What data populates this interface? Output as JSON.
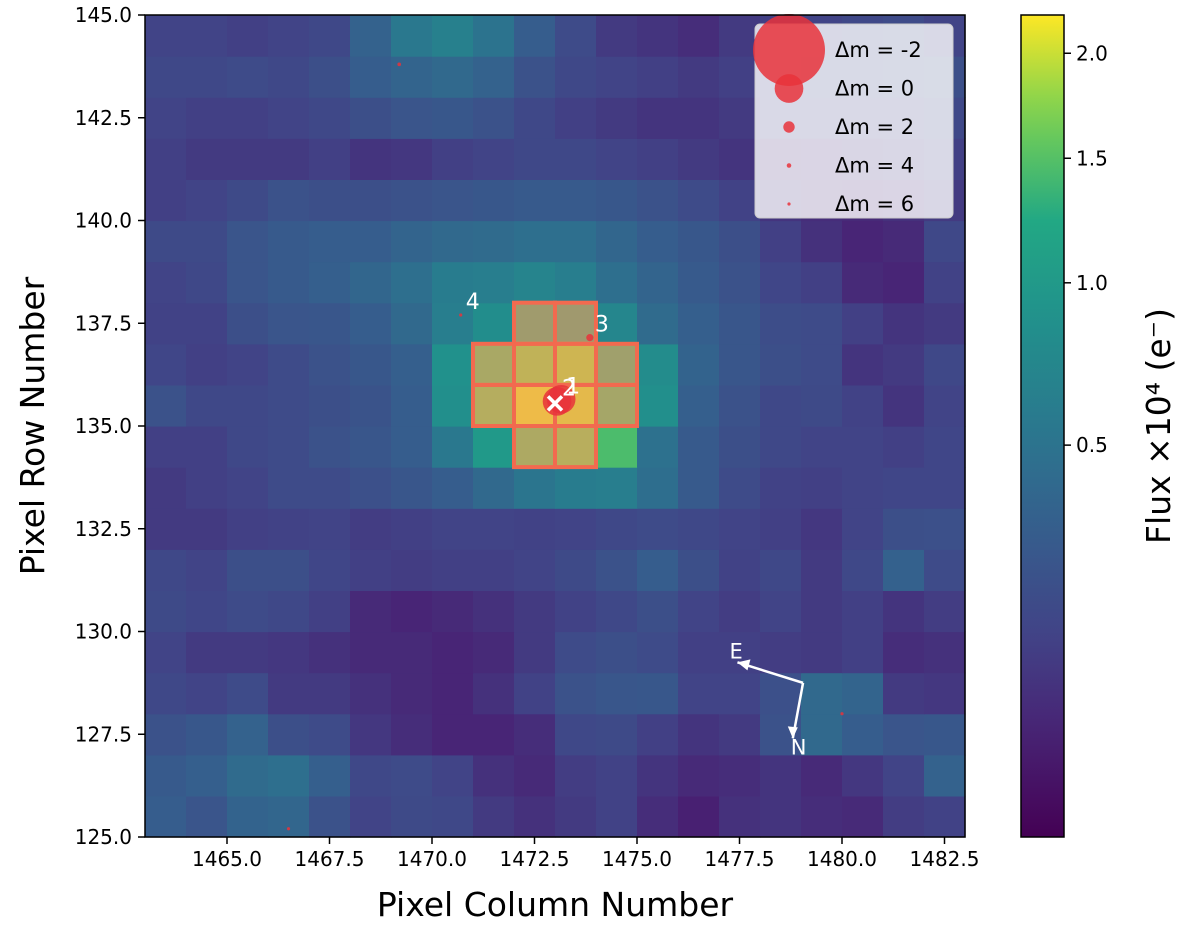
{
  "chart_data": {
    "type": "heatmap",
    "xlabel": "Pixel Column Number",
    "ylabel": "Pixel Row Number",
    "xlim": [
      1463,
      1483
    ],
    "ylim": [
      125,
      145
    ],
    "x_ticks": [
      1465.0,
      1467.5,
      1470.0,
      1472.5,
      1475.0,
      1477.5,
      1480.0,
      1482.5
    ],
    "x_tick_labels": [
      "1465.0",
      "1467.5",
      "1470.0",
      "1472.5",
      "1475.0",
      "1477.5",
      "1480.0",
      "1482.5"
    ],
    "y_ticks": [
      125.0,
      127.5,
      130.0,
      132.5,
      135.0,
      137.5,
      140.0,
      142.5,
      145.0
    ],
    "y_tick_labels": [
      "125.0",
      "127.5",
      "130.0",
      "132.5",
      "135.0",
      "137.5",
      "140.0",
      "142.5",
      "145.0"
    ],
    "grid_cols": 20,
    "grid_rows": 20,
    "grid_origin": [
      1463,
      125
    ],
    "pixel_flux": [
      [
        0.3,
        0.24,
        0.35,
        0.38,
        0.22,
        0.14,
        0.17,
        0.16,
        0.1,
        0.07,
        0.1,
        0.13,
        0.06,
        0.03,
        0.07,
        0.08,
        0.06,
        0.05,
        0.11,
        0.13
      ],
      [
        0.28,
        0.32,
        0.42,
        0.46,
        0.32,
        0.16,
        0.18,
        0.14,
        0.07,
        0.05,
        0.11,
        0.13,
        0.08,
        0.05,
        0.06,
        0.08,
        0.05,
        0.09,
        0.14,
        0.34
      ],
      [
        0.22,
        0.26,
        0.34,
        0.2,
        0.18,
        0.09,
        0.06,
        0.04,
        0.04,
        0.06,
        0.16,
        0.17,
        0.12,
        0.08,
        0.1,
        0.22,
        0.4,
        0.3,
        0.24,
        0.26
      ],
      [
        0.16,
        0.14,
        0.18,
        0.1,
        0.1,
        0.07,
        0.05,
        0.04,
        0.07,
        0.13,
        0.22,
        0.25,
        0.26,
        0.14,
        0.14,
        0.21,
        0.4,
        0.36,
        0.1,
        0.09
      ],
      [
        0.14,
        0.1,
        0.1,
        0.09,
        0.07,
        0.05,
        0.05,
        0.04,
        0.05,
        0.1,
        0.18,
        0.2,
        0.18,
        0.12,
        0.12,
        0.11,
        0.1,
        0.12,
        0.06,
        0.07
      ],
      [
        0.17,
        0.15,
        0.18,
        0.16,
        0.12,
        0.05,
        0.04,
        0.05,
        0.07,
        0.1,
        0.13,
        0.16,
        0.2,
        0.14,
        0.11,
        0.14,
        0.1,
        0.12,
        0.08,
        0.11
      ],
      [
        0.16,
        0.14,
        0.2,
        0.2,
        0.15,
        0.12,
        0.11,
        0.12,
        0.12,
        0.14,
        0.17,
        0.22,
        0.3,
        0.2,
        0.13,
        0.16,
        0.1,
        0.16,
        0.33,
        0.18
      ],
      [
        0.1,
        0.1,
        0.12,
        0.13,
        0.14,
        0.11,
        0.12,
        0.14,
        0.14,
        0.13,
        0.14,
        0.16,
        0.18,
        0.16,
        0.14,
        0.12,
        0.09,
        0.14,
        0.2,
        0.21
      ],
      [
        0.1,
        0.12,
        0.14,
        0.18,
        0.18,
        0.21,
        0.25,
        0.3,
        0.4,
        0.52,
        0.6,
        0.62,
        0.45,
        0.28,
        0.18,
        0.13,
        0.12,
        0.14,
        0.15,
        0.15
      ],
      [
        0.12,
        0.12,
        0.16,
        0.18,
        0.22,
        0.25,
        0.3,
        0.55,
        1.0,
        1.4,
        1.55,
        1.45,
        0.48,
        0.28,
        0.2,
        0.16,
        0.14,
        0.14,
        0.12,
        0.15
      ],
      [
        0.22,
        0.16,
        0.16,
        0.18,
        0.2,
        0.23,
        0.3,
        0.85,
        1.5,
        2.1,
        2.0,
        1.3,
        0.85,
        0.32,
        0.22,
        0.16,
        0.17,
        0.13,
        0.08,
        0.14
      ],
      [
        0.15,
        0.12,
        0.14,
        0.18,
        0.22,
        0.26,
        0.32,
        0.88,
        1.35,
        1.65,
        1.8,
        1.1,
        0.8,
        0.35,
        0.25,
        0.2,
        0.18,
        0.08,
        0.1,
        0.16
      ],
      [
        0.13,
        0.13,
        0.2,
        0.24,
        0.25,
        0.3,
        0.4,
        0.62,
        0.82,
        0.9,
        0.85,
        0.72,
        0.42,
        0.32,
        0.25,
        0.19,
        0.18,
        0.12,
        0.08,
        0.1
      ],
      [
        0.14,
        0.16,
        0.24,
        0.28,
        0.32,
        0.38,
        0.46,
        0.6,
        0.62,
        0.7,
        0.62,
        0.46,
        0.36,
        0.28,
        0.22,
        0.15,
        0.12,
        0.05,
        0.04,
        0.13
      ],
      [
        0.17,
        0.17,
        0.24,
        0.28,
        0.3,
        0.3,
        0.36,
        0.4,
        0.42,
        0.46,
        0.46,
        0.38,
        0.3,
        0.26,
        0.2,
        0.12,
        0.07,
        0.04,
        0.05,
        0.16
      ],
      [
        0.12,
        0.14,
        0.17,
        0.22,
        0.2,
        0.2,
        0.22,
        0.24,
        0.26,
        0.28,
        0.28,
        0.26,
        0.22,
        0.18,
        0.13,
        0.08,
        0.06,
        0.05,
        0.07,
        0.1
      ],
      [
        0.12,
        0.1,
        0.1,
        0.1,
        0.12,
        0.08,
        0.09,
        0.12,
        0.14,
        0.16,
        0.16,
        0.14,
        0.12,
        0.1,
        0.08,
        0.06,
        0.07,
        0.08,
        0.1,
        0.12
      ],
      [
        0.14,
        0.12,
        0.12,
        0.14,
        0.16,
        0.2,
        0.24,
        0.26,
        0.22,
        0.16,
        0.12,
        0.1,
        0.08,
        0.08,
        0.1,
        0.12,
        0.14,
        0.12,
        0.14,
        0.16
      ],
      [
        0.16,
        0.16,
        0.18,
        0.16,
        0.2,
        0.3,
        0.36,
        0.4,
        0.34,
        0.22,
        0.16,
        0.14,
        0.12,
        0.1,
        0.12,
        0.14,
        0.16,
        0.16,
        0.18,
        0.2
      ],
      [
        0.14,
        0.14,
        0.12,
        0.14,
        0.16,
        0.34,
        0.55,
        0.65,
        0.5,
        0.3,
        0.18,
        0.1,
        0.08,
        0.06,
        0.1,
        0.12,
        0.14,
        0.16,
        0.18,
        0.14
      ]
    ],
    "aperture_pixels": [
      [
        1472,
        134
      ],
      [
        1473,
        134
      ],
      [
        1471,
        135
      ],
      [
        1472,
        135
      ],
      [
        1473,
        135
      ],
      [
        1474,
        135
      ],
      [
        1471,
        136
      ],
      [
        1472,
        136
      ],
      [
        1473,
        136
      ],
      [
        1474,
        136
      ],
      [
        1472,
        137
      ],
      [
        1473,
        137
      ]
    ],
    "target_marker": {
      "x": 1473.0,
      "y": 135.55
    },
    "stars": [
      {
        "label": "1",
        "x": 1473.15,
        "y": 135.65,
        "dm": 0
      },
      {
        "label": "2",
        "x": 1473.05,
        "y": 135.6,
        "dm": 0
      },
      {
        "label": "3",
        "x": 1473.85,
        "y": 137.15,
        "dm": 3
      },
      {
        "label": "4",
        "x": 1470.7,
        "y": 137.7,
        "dm": 6
      },
      {
        "label": "",
        "x": 1469.2,
        "y": 143.8,
        "dm": 4.5
      },
      {
        "label": "",
        "x": 1480.0,
        "y": 128.0,
        "dm": 6
      },
      {
        "label": "",
        "x": 1466.5,
        "y": 125.2,
        "dm": 6
      }
    ],
    "legend": {
      "position": "upper-right",
      "entries": [
        {
          "label": "Δm =  -2",
          "dm": -2
        },
        {
          "label": "Δm =  0",
          "dm": 0
        },
        {
          "label": "Δm =  2",
          "dm": 2
        },
        {
          "label": "Δm =  4",
          "dm": 4
        },
        {
          "label": "Δm =  6",
          "dm": 6
        }
      ]
    },
    "compass": {
      "east_label": "E",
      "north_label": "N"
    },
    "colorbar": {
      "title": "Flux ×10⁴ (e⁻)",
      "scale": "sqrt",
      "range": [
        0,
        2.2
      ],
      "ticks": [
        0.5,
        1.0,
        1.5,
        2.0
      ],
      "tick_labels": [
        "0.5",
        "1.0",
        "1.5",
        "2.0"
      ]
    },
    "colormap": "viridis",
    "colors": {
      "aperture_edge": "#f26a4f",
      "aperture_fill": "#f5a05a",
      "star_marker": "#e8333b",
      "target_cross": "#ffffff"
    }
  }
}
